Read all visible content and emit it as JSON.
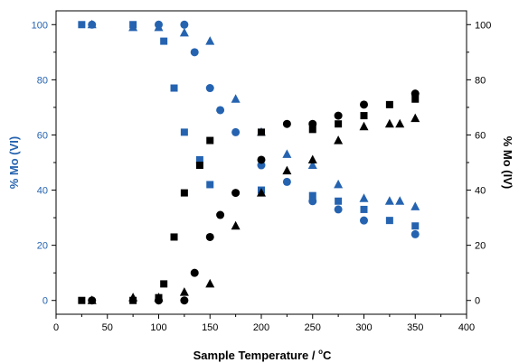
{
  "chart_data": {
    "type": "scatter",
    "xlabel_main": "Sample Temperature / ",
    "xlabel_unit": "C",
    "xlabel_degree": "o",
    "ylabel_left": "% Mo (VI)",
    "ylabel_right": "% Mo (IV)",
    "xlim": [
      0,
      400
    ],
    "ylim": [
      -5,
      105
    ],
    "x_ticks": [
      0,
      50,
      100,
      150,
      200,
      250,
      300,
      350,
      400
    ],
    "y_ticks": [
      0,
      20,
      40,
      60,
      80,
      100
    ],
    "grid": false,
    "legend": "none",
    "colors": {
      "mo_vi": "#2563b0",
      "mo_iv": "#000000",
      "axis": "#000000",
      "left_axis_text": "#2563b0"
    },
    "series": [
      {
        "group": "Mo(VI)",
        "marker": "square",
        "color": "#2563b0",
        "points": [
          [
            25,
            100
          ],
          [
            75,
            100
          ],
          [
            105,
            94
          ],
          [
            115,
            77
          ],
          [
            125,
            61
          ],
          [
            140,
            51
          ],
          [
            150,
            42
          ],
          [
            200,
            40
          ],
          [
            250,
            38
          ],
          [
            275,
            36
          ],
          [
            300,
            33
          ],
          [
            325,
            29
          ],
          [
            350,
            27
          ]
        ]
      },
      {
        "group": "Mo(VI)",
        "marker": "circle",
        "color": "#2563b0",
        "points": [
          [
            35,
            100
          ],
          [
            100,
            100
          ],
          [
            125,
            100
          ],
          [
            135,
            90
          ],
          [
            150,
            77
          ],
          [
            160,
            69
          ],
          [
            175,
            61
          ],
          [
            200,
            49
          ],
          [
            225,
            43
          ],
          [
            250,
            36
          ],
          [
            275,
            33
          ],
          [
            300,
            29
          ],
          [
            350,
            24
          ]
        ]
      },
      {
        "group": "Mo(VI)",
        "marker": "triangle",
        "color": "#2563b0",
        "points": [
          [
            35,
            100
          ],
          [
            75,
            99
          ],
          [
            100,
            99
          ],
          [
            125,
            97
          ],
          [
            150,
            94
          ],
          [
            175,
            73
          ],
          [
            200,
            61
          ],
          [
            225,
            53
          ],
          [
            250,
            49
          ],
          [
            275,
            42
          ],
          [
            300,
            37
          ],
          [
            325,
            36
          ],
          [
            335,
            36
          ],
          [
            350,
            34
          ]
        ]
      },
      {
        "group": "Mo(IV)",
        "marker": "square",
        "color": "#000000",
        "points": [
          [
            25,
            0
          ],
          [
            75,
            0
          ],
          [
            100,
            1
          ],
          [
            105,
            6
          ],
          [
            115,
            23
          ],
          [
            125,
            39
          ],
          [
            140,
            49
          ],
          [
            150,
            58
          ],
          [
            200,
            61
          ],
          [
            250,
            62
          ],
          [
            275,
            64
          ],
          [
            300,
            67
          ],
          [
            325,
            71
          ],
          [
            350,
            73
          ]
        ]
      },
      {
        "group": "Mo(IV)",
        "marker": "circle",
        "color": "#000000",
        "points": [
          [
            35,
            0
          ],
          [
            100,
            0
          ],
          [
            125,
            0
          ],
          [
            135,
            10
          ],
          [
            150,
            23
          ],
          [
            160,
            31
          ],
          [
            175,
            39
          ],
          [
            200,
            51
          ],
          [
            225,
            64
          ],
          [
            250,
            64
          ],
          [
            275,
            67
          ],
          [
            300,
            71
          ],
          [
            350,
            75
          ]
        ]
      },
      {
        "group": "Mo(IV)",
        "marker": "triangle",
        "color": "#000000",
        "points": [
          [
            35,
            0
          ],
          [
            75,
            1
          ],
          [
            100,
            1
          ],
          [
            125,
            3
          ],
          [
            150,
            6
          ],
          [
            175,
            27
          ],
          [
            200,
            39
          ],
          [
            225,
            47
          ],
          [
            250,
            51
          ],
          [
            275,
            58
          ],
          [
            300,
            63
          ],
          [
            325,
            64
          ],
          [
            335,
            64
          ],
          [
            350,
            66
          ]
        ]
      }
    ]
  }
}
